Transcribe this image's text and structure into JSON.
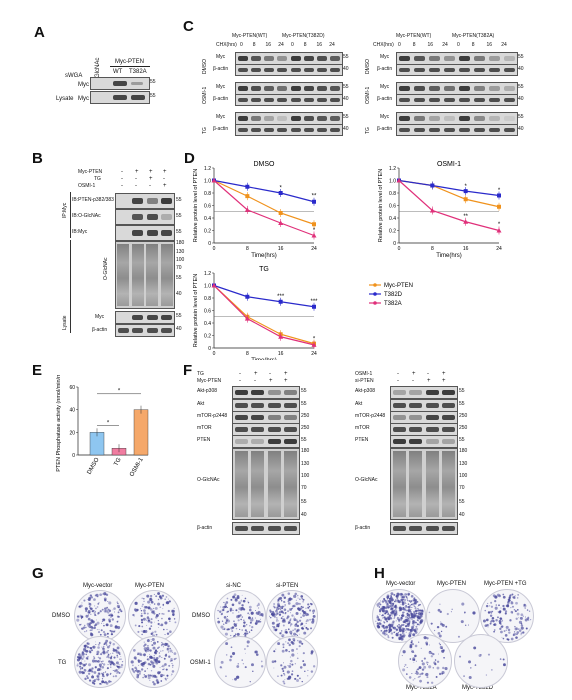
{
  "panels": {
    "A": "A",
    "B": "B",
    "C": "C",
    "D": "D",
    "E": "E",
    "F": "F",
    "G": "G",
    "H": "H"
  },
  "panelA": {
    "sWGA": "sWGA",
    "lysate": "Lysate",
    "myc": "Myc",
    "glcnac": "GlcNAc",
    "myc_pten": "Myc-PTEN",
    "wt": "WT",
    "t382a": "T382A",
    "mw55": "55"
  },
  "panelB": {
    "rows_cond": [
      "Myc-PTEN",
      "TG",
      "OSMI-1"
    ],
    "signs": [
      [
        "-",
        "+",
        "+",
        "+"
      ],
      [
        "-",
        "-",
        "+",
        "-"
      ],
      [
        "-",
        "-",
        "-",
        "+"
      ]
    ],
    "ip_label": "IP:Myc",
    "ip_blots": [
      "IB:PTEN-p382/383",
      "IB:O-GlcNAc",
      "IB:Myc"
    ],
    "lysate_label": "Lysate",
    "ogn": "O-GlcNAc",
    "lysate_blots": [
      "Myc",
      "β-actin"
    ],
    "mw_ip": [
      "55",
      "55",
      "55"
    ],
    "mw_lys": [
      "180",
      "130",
      "100",
      "70",
      "55",
      "40",
      "55",
      "40"
    ]
  },
  "panelC": {
    "left_title_wt": "Myc-PTEN(WT)",
    "left_title_mut": "Myc-PTEN(T382D)",
    "right_title_wt": "Myc-PTEN(WT)",
    "right_title_mut": "Myc-PTEN(T382A)",
    "chx": "CHX(hrs)",
    "times": [
      "0",
      "8",
      "16",
      "24",
      "0",
      "8",
      "16",
      "24"
    ],
    "groups": [
      "DMSO",
      "OSMI-1",
      "TG"
    ],
    "rows": [
      "Myc",
      "β-actin"
    ],
    "mw": [
      "55",
      "40"
    ]
  },
  "chart_data": [
    {
      "type": "line",
      "title": "DMSO",
      "xlabel": "Time(hrs)",
      "ylabel": "Relative protein level of PTEN",
      "x": [
        0,
        8,
        16,
        24
      ],
      "ylim": [
        0,
        1.2
      ],
      "yticks": [
        "0",
        "0.2",
        "0.4",
        "0.6",
        "0.8",
        "1.0",
        "1.2"
      ],
      "xticks": [
        "0",
        "8",
        "16",
        "24"
      ],
      "series": [
        {
          "name": "Myc-PTEN",
          "color": "#f0921c",
          "values": [
            1.0,
            0.75,
            0.48,
            0.3
          ]
        },
        {
          "name": "T382D",
          "color": "#2a2acb",
          "values": [
            1.0,
            0.9,
            0.8,
            0.66
          ]
        },
        {
          "name": "T382A",
          "color": "#e0307a",
          "values": [
            1.0,
            0.53,
            0.32,
            0.12
          ]
        }
      ],
      "annotations": [
        "*",
        "**",
        "*"
      ]
    },
    {
      "type": "line",
      "title": "OSMI-1",
      "xlabel": "Time(hrs)",
      "ylabel": "Relative protein level of PTEN",
      "x": [
        0,
        8,
        16,
        24
      ],
      "ylim": [
        0,
        1.2
      ],
      "yticks": [
        "0",
        "0.2",
        "0.4",
        "0.6",
        "0.8",
        "1.0",
        "1.2"
      ],
      "xticks": [
        "0",
        "8",
        "16",
        "24"
      ],
      "series": [
        {
          "name": "Myc-PTEN",
          "color": "#f0921c",
          "values": [
            1.0,
            0.92,
            0.7,
            0.58
          ]
        },
        {
          "name": "T382D",
          "color": "#2a2acb",
          "values": [
            1.0,
            0.92,
            0.83,
            0.76
          ]
        },
        {
          "name": "T382A",
          "color": "#e0307a",
          "values": [
            1.0,
            0.52,
            0.34,
            0.2
          ]
        }
      ],
      "annotations": [
        "*",
        "*",
        "**",
        "*"
      ]
    },
    {
      "type": "line",
      "title": "TG",
      "xlabel": "Time(hrs)",
      "ylabel": "Relative protein level of PTEN",
      "x": [
        0,
        8,
        16,
        24
      ],
      "ylim": [
        0,
        1.2
      ],
      "yticks": [
        "0",
        "0.2",
        "0.4",
        "0.6",
        "0.8",
        "1.0",
        "1.2"
      ],
      "xticks": [
        "0",
        "8",
        "16",
        "24"
      ],
      "series": [
        {
          "name": "Myc-PTEN",
          "color": "#f0921c",
          "values": [
            1.0,
            0.5,
            0.22,
            0.07
          ]
        },
        {
          "name": "T382D",
          "color": "#2a2acb",
          "values": [
            1.0,
            0.82,
            0.74,
            0.66
          ]
        },
        {
          "name": "T382A",
          "color": "#e0307a",
          "values": [
            1.0,
            0.47,
            0.18,
            0.05
          ]
        }
      ],
      "annotations": [
        "***",
        "***",
        "*"
      ]
    },
    {
      "type": "bar",
      "ylabel": "PTEN Phosphatase activity (nmol/min/ml)",
      "categories": [
        "DMSO",
        "TG",
        "OSMI-1"
      ],
      "values": [
        20,
        6,
        40
      ],
      "ylim": [
        0,
        60
      ],
      "yticks": [
        "0",
        "20",
        "40",
        "60"
      ],
      "colors": [
        "#8ec6f0",
        "#f07ca0",
        "#f5a86a"
      ],
      "annotations": [
        "*",
        "*"
      ]
    }
  ],
  "legendD": [
    "Myc-PTEN",
    "T382D",
    "T382A"
  ],
  "panelF": {
    "left_cond": [
      "TG",
      "Myc-PTEN"
    ],
    "left_signs": [
      [
        "-",
        "+",
        "-",
        "+"
      ],
      [
        "-",
        "-",
        "+",
        "+"
      ]
    ],
    "right_cond": [
      "OSMI-1",
      "si-PTEN"
    ],
    "right_signs": [
      [
        "-",
        "+",
        "-",
        "+"
      ],
      [
        "-",
        "-",
        "+",
        "+"
      ]
    ],
    "rows": [
      "Akt-p308",
      "Akt",
      "mTOR-p2448",
      "mTOR",
      "PTEN",
      "O-GlcNAc",
      "β-actin"
    ],
    "mw_left": [
      "55",
      "55",
      "250",
      "250",
      "55",
      "180",
      "130",
      "100",
      "70",
      "55",
      "40",
      "40"
    ],
    "mw_right": [
      "55",
      "55",
      "250",
      "250",
      "55",
      "180",
      "130",
      "100",
      "70",
      "55",
      "40",
      "40"
    ]
  },
  "panelG": {
    "col1": "Myc-vector",
    "col2": "Myc-PTEN",
    "col3": "si-NC",
    "col4": "si-PTEN",
    "row1": "DMSO",
    "row2": "TG",
    "row3": "DMSO",
    "row4": "OSMI-1"
  },
  "panelH": {
    "top": [
      "Myc-vector",
      "Myc-PTEN",
      "Myc-PTEN +TG"
    ],
    "bottom": [
      "Myc-T382A",
      "Myc-T382D"
    ]
  }
}
